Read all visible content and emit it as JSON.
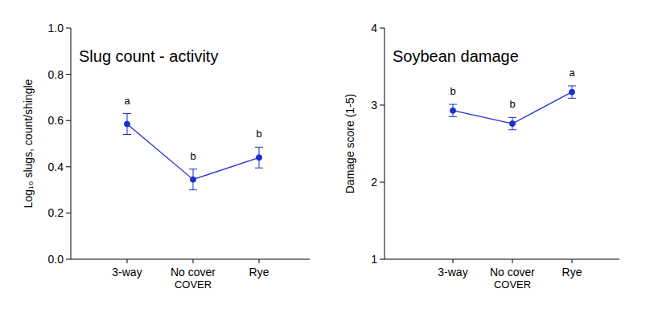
{
  "chart_data": [
    {
      "type": "line",
      "title": "Slug count - activity",
      "y_label": "Log₁₀ slugs, count/shingle",
      "x_label": "COVER",
      "categories": [
        "3-way",
        "No cover",
        "Rye"
      ],
      "values": [
        0.585,
        0.345,
        0.44
      ],
      "errors": [
        0.045,
        0.045,
        0.045
      ],
      "letters": [
        "a",
        "b",
        "b"
      ],
      "color": "#1a2fd0",
      "marker": "circle",
      "line_style": "solid",
      "ylim": [
        0,
        1
      ],
      "yticks": [
        {
          "value": 0,
          "label": "0.0"
        },
        0.2,
        0.4,
        0.6,
        0.8,
        {
          "value": 1,
          "label": "1.0"
        }
      ],
      "grid": false
    },
    {
      "type": "line",
      "title": "Soybean damage",
      "y_label": "Damage score (1-5)",
      "x_label": "COVER",
      "categories": [
        "3-way",
        "No cover",
        "Rye"
      ],
      "values": [
        2.93,
        2.76,
        3.17
      ],
      "errors": [
        0.08,
        0.08,
        0.08
      ],
      "letters": [
        "b",
        "b",
        "a"
      ],
      "color": "#1a2fd0",
      "marker": "circle",
      "line_style": "solid",
      "ylim": [
        1,
        4
      ],
      "yticks": [
        1,
        2,
        3,
        4
      ],
      "grid": false
    }
  ]
}
